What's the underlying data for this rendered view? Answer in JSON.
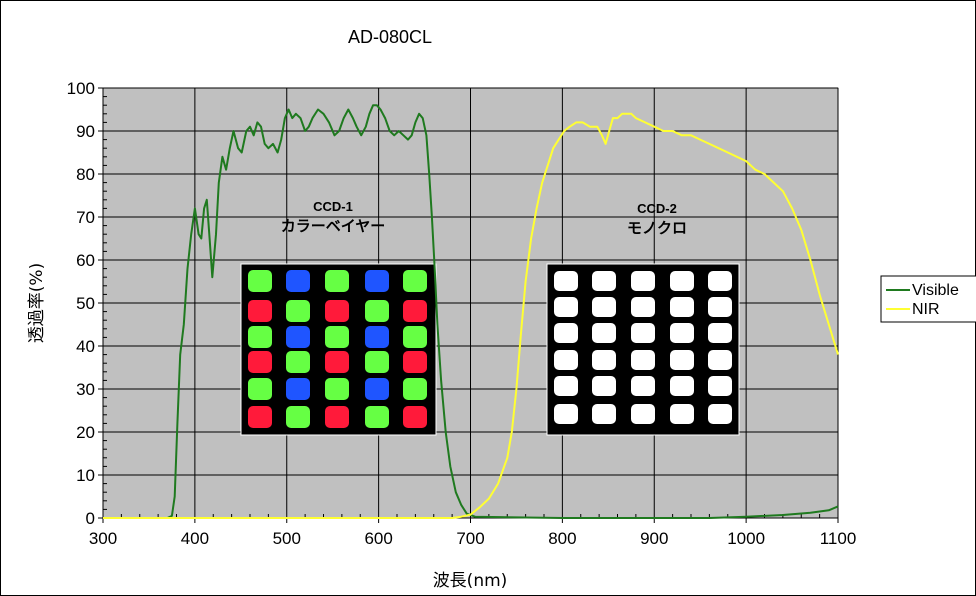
{
  "chart_data": {
    "type": "line",
    "title": "AD-080CL",
    "xlabel": "波長(nm)",
    "ylabel": "透過率(%)",
    "xlim": [
      300,
      1100
    ],
    "ylim": [
      0,
      100
    ],
    "x_ticks": [
      300,
      400,
      500,
      600,
      700,
      800,
      900,
      1000,
      1100
    ],
    "y_ticks": [
      0,
      10,
      20,
      30,
      40,
      50,
      60,
      70,
      80,
      90,
      100
    ],
    "grid": true,
    "plot_background": "#c0c0c0",
    "legend_position": "right",
    "series": [
      {
        "name": "Visible",
        "color": "#1f7a1f",
        "points": [
          [
            300,
            0
          ],
          [
            370,
            0
          ],
          [
            375,
            0.5
          ],
          [
            378,
            5
          ],
          [
            381,
            22
          ],
          [
            384,
            38
          ],
          [
            388,
            45
          ],
          [
            392,
            58
          ],
          [
            396,
            66
          ],
          [
            400,
            72
          ],
          [
            404,
            66
          ],
          [
            407,
            65
          ],
          [
            410,
            72
          ],
          [
            413,
            74
          ],
          [
            416,
            65
          ],
          [
            419,
            56
          ],
          [
            423,
            66
          ],
          [
            426,
            78
          ],
          [
            430,
            84
          ],
          [
            434,
            81
          ],
          [
            438,
            86
          ],
          [
            442,
            90
          ],
          [
            447,
            86
          ],
          [
            451,
            85
          ],
          [
            456,
            90
          ],
          [
            460,
            91
          ],
          [
            464,
            89
          ],
          [
            468,
            92
          ],
          [
            472,
            91
          ],
          [
            476,
            87
          ],
          [
            480,
            86
          ],
          [
            485,
            87
          ],
          [
            490,
            85
          ],
          [
            494,
            88
          ],
          [
            498,
            93
          ],
          [
            502,
            95
          ],
          [
            506,
            93
          ],
          [
            510,
            94
          ],
          [
            515,
            93
          ],
          [
            520,
            90
          ],
          [
            524,
            91
          ],
          [
            528,
            93
          ],
          [
            534,
            95
          ],
          [
            540,
            94
          ],
          [
            546,
            92
          ],
          [
            552,
            89
          ],
          [
            557,
            90
          ],
          [
            562,
            93
          ],
          [
            567,
            95
          ],
          [
            572,
            93
          ],
          [
            576,
            91
          ],
          [
            581,
            89
          ],
          [
            586,
            91
          ],
          [
            590,
            94
          ],
          [
            594,
            96
          ],
          [
            598,
            96
          ],
          [
            602,
            95
          ],
          [
            607,
            93
          ],
          [
            612,
            90
          ],
          [
            617,
            89
          ],
          [
            622,
            90
          ],
          [
            627,
            89
          ],
          [
            632,
            88
          ],
          [
            636,
            89
          ],
          [
            640,
            92
          ],
          [
            644,
            94
          ],
          [
            648,
            93
          ],
          [
            652,
            89
          ],
          [
            655,
            80
          ],
          [
            658,
            70
          ],
          [
            661,
            58
          ],
          [
            664,
            45
          ],
          [
            668,
            32
          ],
          [
            673,
            20
          ],
          [
            678,
            12
          ],
          [
            684,
            6
          ],
          [
            690,
            3
          ],
          [
            696,
            1
          ],
          [
            705,
            0.3
          ],
          [
            800,
            0
          ],
          [
            900,
            0
          ],
          [
            960,
            0
          ],
          [
            1000,
            0.3
          ],
          [
            1040,
            0.7
          ],
          [
            1070,
            1.2
          ],
          [
            1090,
            1.8
          ],
          [
            1100,
            2.7
          ]
        ]
      },
      {
        "name": "NIR",
        "color": "#ffff33",
        "points": [
          [
            300,
            0
          ],
          [
            600,
            0
          ],
          [
            680,
            0
          ],
          [
            690,
            0.3
          ],
          [
            700,
            0.8
          ],
          [
            710,
            2.5
          ],
          [
            720,
            4.5
          ],
          [
            730,
            8
          ],
          [
            740,
            14
          ],
          [
            745,
            20
          ],
          [
            750,
            30
          ],
          [
            755,
            43
          ],
          [
            760,
            55
          ],
          [
            766,
            65
          ],
          [
            772,
            72
          ],
          [
            778,
            78
          ],
          [
            784,
            82
          ],
          [
            790,
            86
          ],
          [
            796,
            88
          ],
          [
            802,
            90
          ],
          [
            808,
            91
          ],
          [
            815,
            92
          ],
          [
            822,
            92
          ],
          [
            830,
            91
          ],
          [
            838,
            91
          ],
          [
            843,
            89
          ],
          [
            847,
            87
          ],
          [
            851,
            90
          ],
          [
            855,
            93
          ],
          [
            860,
            93
          ],
          [
            865,
            94
          ],
          [
            870,
            94
          ],
          [
            875,
            94
          ],
          [
            880,
            93
          ],
          [
            890,
            92
          ],
          [
            900,
            91
          ],
          [
            910,
            90
          ],
          [
            920,
            90
          ],
          [
            930,
            89
          ],
          [
            940,
            89
          ],
          [
            950,
            88
          ],
          [
            960,
            87
          ],
          [
            970,
            86
          ],
          [
            980,
            85
          ],
          [
            990,
            84
          ],
          [
            1000,
            83
          ],
          [
            1010,
            81
          ],
          [
            1020,
            80
          ],
          [
            1030,
            78
          ],
          [
            1040,
            76
          ],
          [
            1050,
            72
          ],
          [
            1060,
            67
          ],
          [
            1070,
            60
          ],
          [
            1080,
            52
          ],
          [
            1090,
            45
          ],
          [
            1100,
            38
          ]
        ]
      }
    ]
  },
  "insets": {
    "color_sensor": {
      "caption_line1": "CCD-1",
      "caption_line2": "カラーベイヤー",
      "cell_colors": {
        "R": "#ff1a3a",
        "G": "#66ff44",
        "B": "#1f55ff"
      },
      "grid": [
        [
          "G",
          "B",
          "G",
          "B",
          "G"
        ],
        [
          "R",
          "G",
          "R",
          "G",
          "R"
        ],
        [
          "G",
          "B",
          "G",
          "B",
          "G"
        ],
        [
          "R",
          "G",
          "R",
          "G",
          "R"
        ],
        [
          "G",
          "B",
          "G",
          "B",
          "G"
        ],
        [
          "R",
          "G",
          "R",
          "G",
          "R"
        ]
      ]
    },
    "mono_sensor": {
      "caption_line1": "CCD-2",
      "caption_line2": "モノクロ",
      "cell_color": "#ffffff",
      "rows": 6,
      "cols": 5
    }
  }
}
